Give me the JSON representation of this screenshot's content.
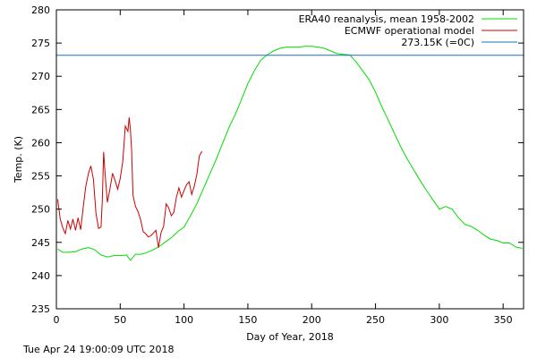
{
  "timestamp": "Tue Apr 24 19:00:09 UTC 2018",
  "chart_data": {
    "type": "line",
    "xlabel": "Day of Year, 2018",
    "ylabel": "Temp. (K)",
    "xlim": [
      0,
      366
    ],
    "ylim": [
      235,
      280
    ],
    "xticks": [
      0,
      50,
      100,
      150,
      200,
      250,
      300,
      350
    ],
    "yticks": [
      235,
      240,
      245,
      250,
      255,
      260,
      265,
      270,
      275,
      280
    ],
    "grid": false,
    "legend_position": "top-right",
    "series": [
      {
        "name": "ERA40 reanalysis, mean 1958-2002",
        "color": "#00dd00",
        "x": [
          1,
          5,
          10,
          15,
          20,
          25,
          30,
          35,
          40,
          45,
          50,
          55,
          58,
          62,
          66,
          70,
          75,
          80,
          85,
          90,
          95,
          100,
          105,
          110,
          115,
          120,
          125,
          130,
          135,
          140,
          145,
          150,
          155,
          160,
          165,
          170,
          175,
          180,
          185,
          190,
          195,
          200,
          205,
          210,
          215,
          220,
          225,
          230,
          235,
          240,
          245,
          250,
          255,
          260,
          265,
          270,
          275,
          280,
          285,
          290,
          295,
          300,
          305,
          310,
          315,
          320,
          325,
          330,
          335,
          340,
          345,
          350,
          355,
          360,
          365
        ],
        "y": [
          244.0,
          243.5,
          243.5,
          243.6,
          244.0,
          244.2,
          243.9,
          243.1,
          242.8,
          243.0,
          243.0,
          243.1,
          242.3,
          243.2,
          243.2,
          243.4,
          243.8,
          244.3,
          245.0,
          245.7,
          246.6,
          247.3,
          249.0,
          250.8,
          253.0,
          255.2,
          257.4,
          259.8,
          262.2,
          264.2,
          266.5,
          268.9,
          270.8,
          272.4,
          273.2,
          273.8,
          274.2,
          274.4,
          274.4,
          274.4,
          274.5,
          274.5,
          274.4,
          274.2,
          273.8,
          273.4,
          273.3,
          273.2,
          272.1,
          270.8,
          269.5,
          267.6,
          265.4,
          263.4,
          261.3,
          259.3,
          257.5,
          255.9,
          254.3,
          252.8,
          251.4,
          250.0,
          250.4,
          250.0,
          248.7,
          247.7,
          247.4,
          246.8,
          246.1,
          245.5,
          245.3,
          244.9,
          244.9,
          244.3,
          244.1
        ]
      },
      {
        "name": "ECMWF operational model",
        "color": "#cc0000",
        "x": [
          1,
          3,
          5,
          7,
          9,
          11,
          13,
          15,
          17,
          19,
          21,
          23,
          25,
          27,
          29,
          31,
          33,
          35,
          36,
          37,
          38,
          40,
          42,
          44,
          46,
          48,
          50,
          52,
          54,
          56,
          57,
          58,
          59,
          60,
          62,
          64,
          66,
          68,
          70,
          72,
          74,
          76,
          78,
          80,
          82,
          84,
          86,
          88,
          90,
          92,
          94,
          96,
          98,
          100,
          102,
          104,
          106,
          108,
          110,
          112,
          114
        ],
        "y": [
          251.5,
          248.5,
          247.2,
          246.3,
          248.3,
          247.0,
          248.5,
          246.8,
          248.7,
          246.9,
          250.3,
          253.4,
          255.3,
          256.5,
          254.5,
          249.4,
          247.1,
          247.3,
          251.3,
          258.6,
          255.7,
          251.0,
          253.1,
          255.4,
          254.3,
          253.0,
          254.6,
          257.2,
          262.5,
          261.7,
          263.8,
          262.0,
          258.7,
          252.1,
          250.4,
          249.6,
          248.4,
          246.6,
          246.3,
          245.8,
          246.0,
          246.4,
          246.8,
          244.2,
          246.5,
          247.4,
          250.8,
          250.2,
          249.0,
          249.5,
          251.8,
          253.2,
          251.8,
          252.8,
          253.7,
          254.1,
          252.2,
          253.4,
          255.2,
          258.0,
          258.7
        ]
      },
      {
        "name": "273.15K (=0C)",
        "color": "#1a6fbf",
        "x": [
          0,
          366
        ],
        "y": [
          273.15,
          273.15
        ]
      }
    ]
  }
}
